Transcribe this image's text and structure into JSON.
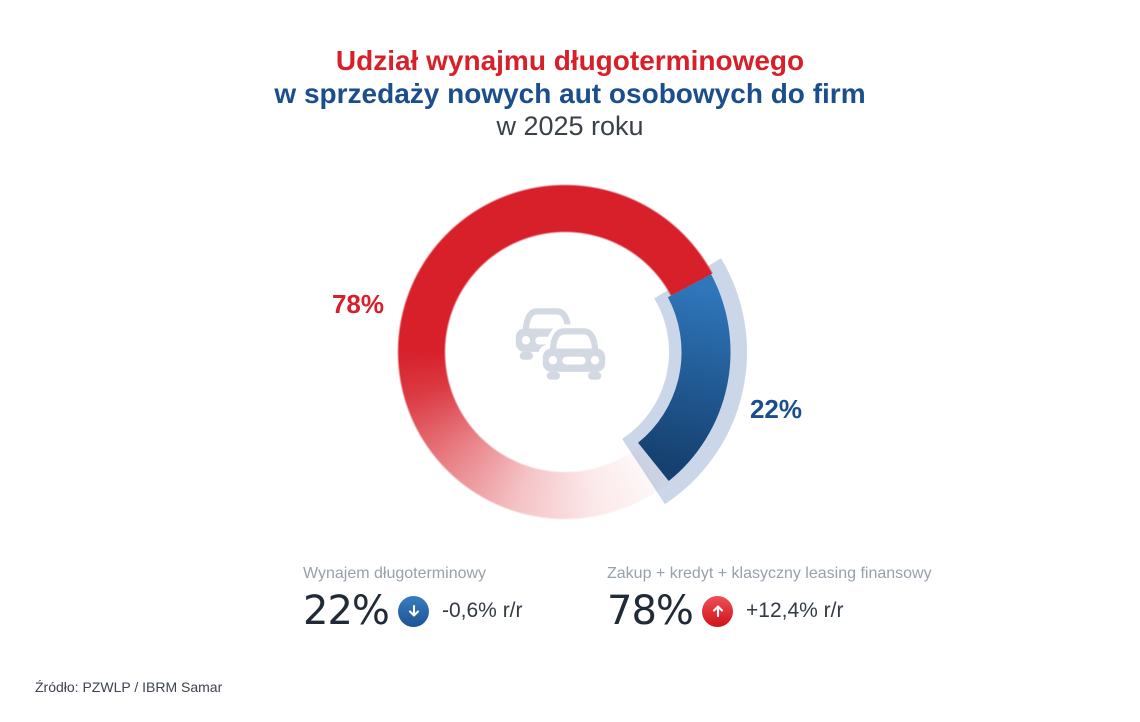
{
  "title": {
    "line1": "Udział wynajmu długoterminowego",
    "line2": "w sprzedaży nowych aut osobowych do firm",
    "line3": "w 2025 roku"
  },
  "chart_data": {
    "type": "pie",
    "donut": true,
    "title": "Udział wynajmu długoterminowego w sprzedaży nowych aut osobowych do firm w 2025 roku",
    "unit": "%",
    "rotation_deg": 62,
    "legend_position": "bottom",
    "center_icon": "two-cars-icon",
    "slices": [
      {
        "name": "Zakup + kredyt + klasyczny leasing finansowy",
        "value": 78,
        "display_label": "78%",
        "change_yoy": "+12,4% r/r",
        "trend": "up",
        "color": "#d7202a"
      },
      {
        "name": "Wynajem długoterminowy",
        "value": 22,
        "display_label": "22%",
        "change_yoy": "-0,6% r/r",
        "trend": "down",
        "color": "#1b4e8c"
      }
    ]
  },
  "source": "Źródło: PZWLP / IBRM Samar",
  "colors": {
    "red": "#d7202a",
    "navy": "#1b4e8c",
    "subtitle_gray": "#3b414b",
    "blue_arc_top": "#2f76bb",
    "blue_arc_bottom": "#15406f",
    "pale_arc": "#cbd7e9",
    "car_icon": "#d3d9e3",
    "label_gray": "#97a0ab",
    "value_dark": "#212b38",
    "text_dark": "#323a45",
    "trend_up_top": "#ef5058",
    "trend_up_bottom": "#cf1219",
    "trend_down_top": "#3a7cc0",
    "trend_down_bottom": "#1d5496",
    "source_text": "#3d4350"
  }
}
